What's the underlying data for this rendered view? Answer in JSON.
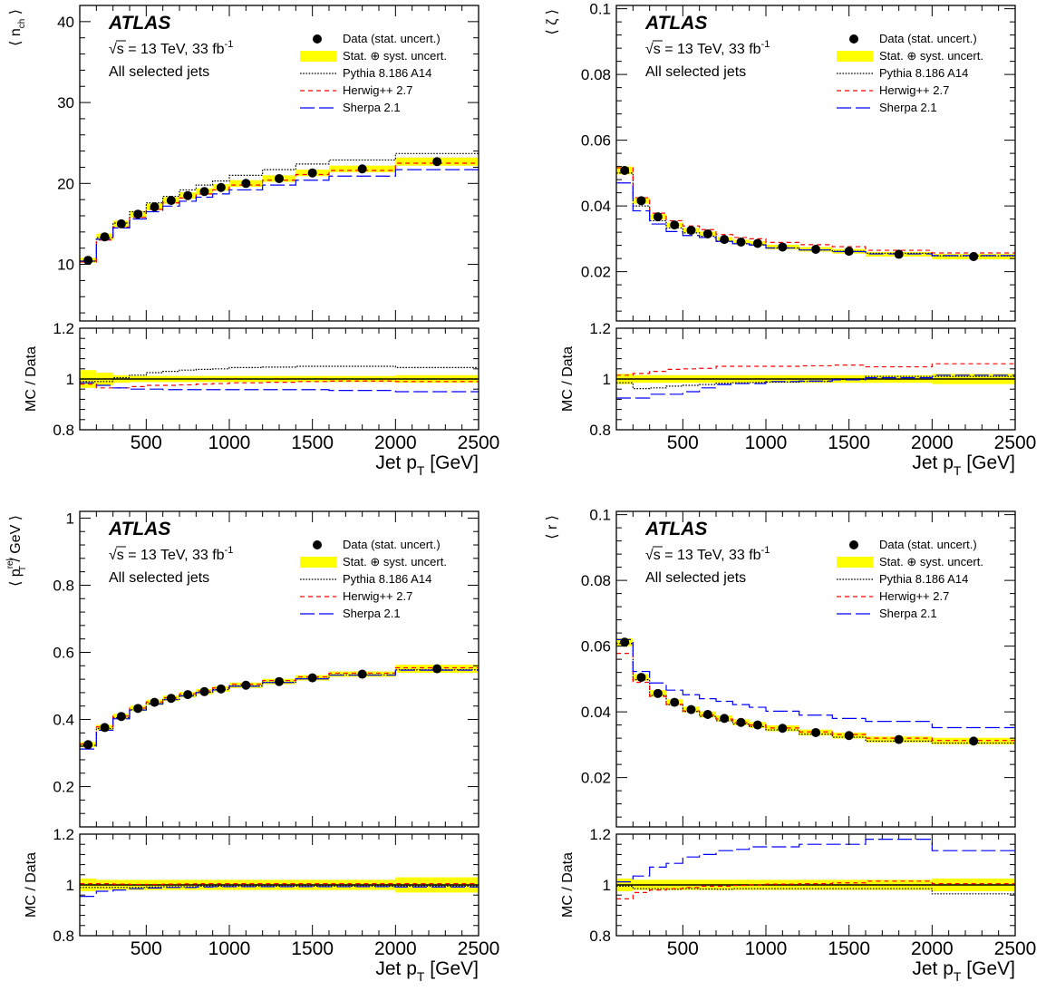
{
  "common": {
    "experiment": "ATLAS",
    "sqrt_symbol": "√",
    "energy_text": "s = 13 TeV, 33 fb",
    "lumi_exponent": "-1",
    "selection": "All selected jets",
    "legend": [
      {
        "key": "data",
        "label": "Data (stat. uncert.)"
      },
      {
        "key": "band",
        "label": "Stat. ⊕ syst. uncert."
      },
      {
        "key": "pythia",
        "label": "Pythia 8.186 A14"
      },
      {
        "key": "herwig",
        "label": "Herwig++ 2.7"
      },
      {
        "key": "sherpa",
        "label": "Sherpa 2.1"
      }
    ],
    "ratio_ylabel": "MC / Data",
    "xlabel_main": "Jet p",
    "xlabel_sub": "T",
    "xlabel_unit": " [GeV]",
    "x_ticks": [
      "500",
      "1000",
      "1500",
      "2000",
      "2500"
    ],
    "ratio_ticks": [
      "0.8",
      "1",
      "1.2"
    ],
    "colors": {
      "data": "#000000",
      "band": "#ffff00",
      "pythia": "#000000",
      "herwig": "#ff0000",
      "sherpa": "#0000ff"
    }
  },
  "chart_data": [
    {
      "type": "line",
      "panel": "top-left",
      "ylabel": {
        "lead": "⟨ n",
        "sub": "ch",
        "sup": "",
        "tail": " ⟩"
      },
      "ylim": [
        3,
        42
      ],
      "y_ticks": [
        10,
        20,
        30,
        40
      ],
      "y_tick_labels": [
        "10",
        "20",
        "30",
        "40"
      ],
      "bin_edges": [
        100,
        200,
        300,
        400,
        500,
        600,
        700,
        800,
        900,
        1000,
        1200,
        1400,
        1600,
        2000,
        2500
      ],
      "data": [
        10.5,
        13.4,
        15.0,
        16.2,
        17.1,
        17.9,
        18.5,
        19.0,
        19.5,
        20.0,
        20.6,
        21.3,
        21.8,
        22.7
      ],
      "band_halfwidth": [
        0.3,
        0.4,
        0.4,
        0.4,
        0.4,
        0.4,
        0.4,
        0.4,
        0.4,
        0.4,
        0.4,
        0.4,
        0.4,
        0.5
      ],
      "pythia": [
        10.4,
        13.3,
        15.1,
        16.5,
        17.6,
        18.4,
        19.2,
        19.8,
        20.3,
        21.0,
        21.7,
        22.4,
        22.9,
        23.7
      ],
      "herwig": [
        10.3,
        13.0,
        14.6,
        15.8,
        16.8,
        17.6,
        18.2,
        18.7,
        19.2,
        19.8,
        20.4,
        21.1,
        21.6,
        22.5
      ],
      "sherpa": [
        10.4,
        13.1,
        14.5,
        15.6,
        16.5,
        17.2,
        17.8,
        18.3,
        18.7,
        19.2,
        19.8,
        20.4,
        20.9,
        21.7
      ],
      "ratio_band": [
        0.035,
        0.025,
        0.015,
        0.012,
        0.012,
        0.012,
        0.012,
        0.012,
        0.012,
        0.012,
        0.012,
        0.012,
        0.012,
        0.015
      ],
      "ratio_pythia": [
        0.99,
        0.99,
        1.005,
        1.015,
        1.025,
        1.03,
        1.035,
        1.038,
        1.04,
        1.045,
        1.047,
        1.05,
        1.05,
        1.045
      ],
      "ratio_herwig": [
        0.98,
        0.965,
        0.965,
        0.97,
        0.975,
        0.975,
        0.977,
        0.98,
        0.982,
        0.985,
        0.987,
        0.99,
        0.992,
        0.99
      ],
      "ratio_sherpa": [
        0.985,
        0.975,
        0.965,
        0.96,
        0.96,
        0.958,
        0.958,
        0.958,
        0.958,
        0.958,
        0.958,
        0.958,
        0.955,
        0.95
      ]
    },
    {
      "type": "line",
      "panel": "top-right",
      "ylabel": {
        "lead": "⟨ ζ",
        "sub": "",
        "sup": "",
        "tail": " ⟩"
      },
      "ylim": [
        0.005,
        0.101
      ],
      "y_ticks": [
        0.02,
        0.04,
        0.06,
        0.08,
        0.1
      ],
      "y_tick_labels": [
        "0.02",
        "0.04",
        "0.06",
        "0.08",
        "0.1"
      ],
      "bin_edges": [
        100,
        200,
        300,
        400,
        500,
        600,
        700,
        800,
        900,
        1000,
        1200,
        1400,
        1600,
        2000,
        2500
      ],
      "data": [
        0.0508,
        0.0416,
        0.0367,
        0.0342,
        0.0326,
        0.0315,
        0.0298,
        0.029,
        0.0286,
        0.0275,
        0.0268,
        0.0262,
        0.0253,
        0.0246
      ],
      "band_halfwidth": [
        0.0012,
        0.0009,
        0.0008,
        0.0007,
        0.0007,
        0.0007,
        0.0007,
        0.0007,
        0.0007,
        0.0007,
        0.0007,
        0.0007,
        0.0007,
        0.0008
      ],
      "pythia": [
        0.05,
        0.04,
        0.0355,
        0.0333,
        0.0318,
        0.0308,
        0.0293,
        0.0285,
        0.0282,
        0.0272,
        0.0266,
        0.0262,
        0.0256,
        0.0248
      ],
      "herwig": [
        0.0516,
        0.0425,
        0.0378,
        0.0355,
        0.0339,
        0.0328,
        0.0313,
        0.0304,
        0.03,
        0.0289,
        0.0282,
        0.0276,
        0.0265,
        0.0257
      ],
      "sherpa": [
        0.047,
        0.0385,
        0.0345,
        0.0322,
        0.031,
        0.0304,
        0.0292,
        0.0285,
        0.0281,
        0.0272,
        0.0266,
        0.0261,
        0.0254,
        0.0249
      ],
      "ratio_band": [
        0.02,
        0.015,
        0.015,
        0.015,
        0.015,
        0.015,
        0.015,
        0.015,
        0.015,
        0.015,
        0.015,
        0.015,
        0.015,
        0.02
      ],
      "ratio_pythia": [
        0.985,
        0.962,
        0.965,
        0.972,
        0.975,
        0.978,
        0.983,
        0.985,
        0.986,
        0.988,
        0.99,
        0.998,
        1.01,
        1.01
      ],
      "ratio_herwig": [
        1.015,
        1.022,
        1.03,
        1.038,
        1.04,
        1.042,
        1.05,
        1.05,
        1.05,
        1.05,
        1.052,
        1.055,
        1.048,
        1.06
      ],
      "ratio_sherpa": [
        0.925,
        0.925,
        0.94,
        0.94,
        0.95,
        0.965,
        0.978,
        0.982,
        0.982,
        0.99,
        0.992,
        0.997,
        1.005,
        1.015
      ]
    },
    {
      "type": "line",
      "panel": "bottom-left",
      "ylabel": {
        "lead": "⟨ p",
        "sub": "T",
        "sup": "rel",
        "tail": " / GeV ⟩"
      },
      "ylim": [
        0.08,
        1.02
      ],
      "y_ticks": [
        0.2,
        0.4,
        0.6,
        0.8,
        1.0
      ],
      "y_tick_labels": [
        "0.2",
        "0.4",
        "0.6",
        "0.8",
        "1"
      ],
      "bin_edges": [
        100,
        200,
        300,
        400,
        500,
        600,
        700,
        800,
        900,
        1000,
        1200,
        1400,
        1600,
        2000,
        2500
      ],
      "data": [
        0.325,
        0.376,
        0.409,
        0.433,
        0.451,
        0.463,
        0.474,
        0.483,
        0.491,
        0.502,
        0.513,
        0.524,
        0.535,
        0.551
      ],
      "band_halfwidth": [
        0.008,
        0.008,
        0.008,
        0.008,
        0.008,
        0.008,
        0.008,
        0.008,
        0.008,
        0.008,
        0.008,
        0.008,
        0.008,
        0.012
      ],
      "pythia": [
        0.323,
        0.373,
        0.405,
        0.429,
        0.447,
        0.46,
        0.471,
        0.481,
        0.489,
        0.5,
        0.511,
        0.522,
        0.533,
        0.548
      ],
      "herwig": [
        0.327,
        0.378,
        0.41,
        0.434,
        0.452,
        0.465,
        0.476,
        0.485,
        0.494,
        0.505,
        0.516,
        0.527,
        0.538,
        0.554
      ],
      "sherpa": [
        0.312,
        0.368,
        0.402,
        0.428,
        0.446,
        0.459,
        0.47,
        0.48,
        0.488,
        0.499,
        0.51,
        0.521,
        0.532,
        0.547
      ],
      "ratio_band": [
        0.025,
        0.02,
        0.02,
        0.02,
        0.02,
        0.02,
        0.02,
        0.02,
        0.02,
        0.02,
        0.02,
        0.02,
        0.02,
        0.03
      ],
      "ratio_pythia": [
        0.99,
        0.99,
        0.99,
        0.99,
        0.992,
        0.993,
        0.993,
        0.995,
        0.995,
        0.995,
        0.995,
        0.995,
        0.995,
        0.995
      ],
      "ratio_herwig": [
        1.005,
        1.005,
        1.003,
        1.002,
        1.002,
        1.003,
        1.004,
        1.005,
        1.005,
        1.005,
        1.005,
        1.005,
        1.005,
        1.005
      ],
      "ratio_sherpa": [
        0.955,
        0.975,
        0.98,
        0.985,
        0.988,
        0.99,
        0.99,
        0.992,
        0.993,
        0.993,
        0.993,
        0.993,
        0.993,
        0.992
      ]
    },
    {
      "type": "line",
      "panel": "bottom-right",
      "ylabel": {
        "lead": "⟨ r",
        "sub": "",
        "sup": "",
        "tail": " ⟩"
      },
      "ylim": [
        0.005,
        0.101
      ],
      "y_ticks": [
        0.02,
        0.04,
        0.06,
        0.08,
        0.1
      ],
      "y_tick_labels": [
        "0.02",
        "0.04",
        "0.06",
        "0.08",
        "0.1"
      ],
      "bin_edges": [
        100,
        200,
        300,
        400,
        500,
        600,
        700,
        800,
        900,
        1000,
        1200,
        1400,
        1600,
        2000,
        2500
      ],
      "data": [
        0.0612,
        0.0505,
        0.0456,
        0.0429,
        0.0407,
        0.0392,
        0.038,
        0.0368,
        0.036,
        0.035,
        0.0337,
        0.0328,
        0.0316,
        0.0311
      ],
      "band_halfwidth": [
        0.0012,
        0.001,
        0.001,
        0.0009,
        0.0009,
        0.0009,
        0.0009,
        0.0009,
        0.0009,
        0.0009,
        0.0009,
        0.0009,
        0.0009,
        0.001
      ],
      "pythia": [
        0.0608,
        0.0498,
        0.045,
        0.0422,
        0.0401,
        0.0386,
        0.0373,
        0.0363,
        0.0355,
        0.0345,
        0.0332,
        0.0323,
        0.0311,
        0.0305
      ],
      "herwig": [
        0.0578,
        0.049,
        0.0447,
        0.0423,
        0.0403,
        0.039,
        0.0378,
        0.0367,
        0.036,
        0.0351,
        0.0339,
        0.0331,
        0.032,
        0.0313
      ],
      "sherpa": [
        0.062,
        0.0523,
        0.0488,
        0.0466,
        0.0452,
        0.044,
        0.0432,
        0.0422,
        0.0414,
        0.0402,
        0.039,
        0.038,
        0.0371,
        0.0352
      ],
      "ratio_band": [
        0.025,
        0.02,
        0.02,
        0.02,
        0.02,
        0.02,
        0.02,
        0.02,
        0.02,
        0.02,
        0.02,
        0.02,
        0.02,
        0.025
      ],
      "ratio_pythia": [
        0.995,
        0.985,
        0.985,
        0.983,
        0.985,
        0.984,
        0.983,
        0.985,
        0.985,
        0.985,
        0.985,
        0.985,
        0.985,
        0.965
      ],
      "ratio_herwig": [
        0.945,
        0.97,
        0.98,
        0.985,
        0.99,
        0.995,
        0.995,
        0.998,
        1.0,
        1.003,
        1.005,
        1.008,
        1.015,
        1.005
      ],
      "ratio_sherpa": [
        1.012,
        1.035,
        1.07,
        1.085,
        1.11,
        1.12,
        1.135,
        1.14,
        1.15,
        1.15,
        1.16,
        1.16,
        1.18,
        1.135
      ]
    }
  ]
}
